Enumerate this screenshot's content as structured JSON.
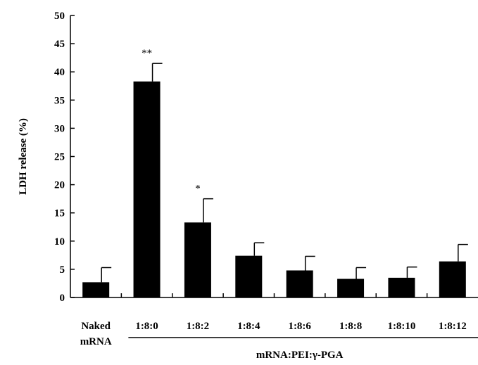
{
  "chart_data": {
    "type": "bar",
    "title": "",
    "ylabel": "LDH release (%)",
    "xlabel": "",
    "group_label": "mRNA:PEI:γ-PGA",
    "ylim": [
      0,
      50
    ],
    "yticks": [
      0,
      5,
      10,
      15,
      20,
      25,
      30,
      35,
      40,
      45,
      50
    ],
    "grid": false,
    "categories": [
      [
        "Naked",
        "mRNA"
      ],
      [
        "1:8:0"
      ],
      [
        "1:8:2"
      ],
      [
        "1:8:4"
      ],
      [
        "1:8:6"
      ],
      [
        "1:8:8"
      ],
      [
        "1:8:10"
      ],
      [
        "1:8:12"
      ]
    ],
    "values": [
      2.7,
      38.3,
      13.3,
      7.4,
      4.8,
      3.3,
      3.5,
      6.4
    ],
    "errors": [
      2.6,
      3.2,
      4.2,
      2.3,
      2.5,
      2.0,
      1.9,
      3.0
    ],
    "significance": [
      "",
      "**",
      "*",
      "",
      "",
      "",
      "",
      ""
    ],
    "bar_color": "#000000"
  }
}
